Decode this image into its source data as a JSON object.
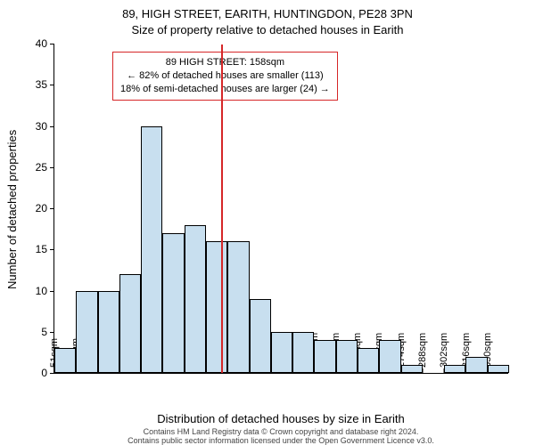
{
  "title_line1": "89, HIGH STREET, EARITH, HUNTINGDON, PE28 3PN",
  "title_line2": "Size of property relative to detached houses in Earith",
  "y_axis_label": "Number of detached properties",
  "x_axis_label": "Distribution of detached houses by size in Earith",
  "footer_line1": "Contains HM Land Registry data © Crown copyright and database right 2024.",
  "footer_line2": "Contains public sector information licensed under the Open Government Licence v3.0.",
  "chart": {
    "type": "histogram",
    "background_color": "#ffffff",
    "text_color": "#000000",
    "bar_fill": "#c8dfef",
    "bar_stroke": "#000000",
    "vline_color": "#d62728",
    "anno_border_color": "#d62728",
    "ymax": 40,
    "ytick_step": 5,
    "yticks": [
      0,
      5,
      10,
      15,
      20,
      25,
      30,
      35,
      40
    ],
    "xticks": [
      "51sqm",
      "65sqm",
      "79sqm",
      "93sqm",
      "107sqm",
      "121sqm",
      "134sqm",
      "148sqm",
      "162sqm",
      "176sqm",
      "190sqm",
      "204sqm",
      "218sqm",
      "232sqm",
      "246sqm",
      "260sqm",
      "274sqm",
      "288sqm",
      "302sqm",
      "316sqm",
      "330sqm"
    ],
    "values": [
      3,
      10,
      10,
      12,
      30,
      17,
      18,
      16,
      16,
      9,
      5,
      5,
      4,
      4,
      3,
      4,
      1,
      0,
      1,
      2,
      1
    ],
    "vline_category_index": 7.7,
    "annotation": {
      "line1": "89 HIGH STREET: 158sqm",
      "line2": "← 82% of detached houses are smaller (113)",
      "line3": "18% of semi-detached houses are larger (24) →"
    }
  }
}
